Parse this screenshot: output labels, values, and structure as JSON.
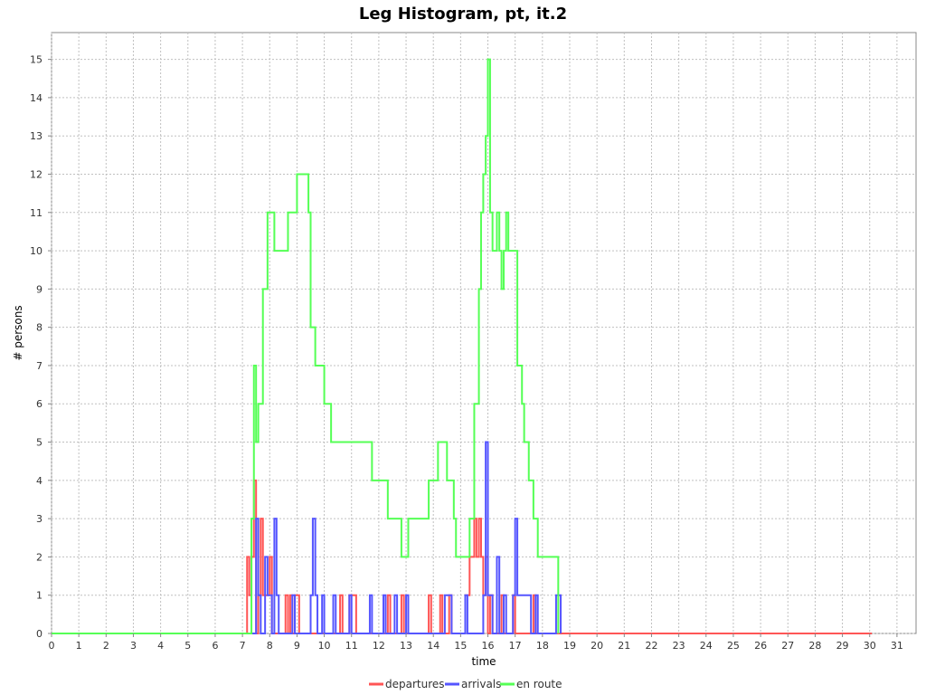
{
  "chart_data": {
    "type": "line",
    "title": "Leg Histogram, pt, it.2",
    "xlabel": "time",
    "ylabel": "# persons",
    "xlim": [
      0,
      31.7
    ],
    "ylim": [
      0,
      15.7
    ],
    "x_ticks": [
      0,
      1,
      2,
      3,
      4,
      5,
      6,
      7,
      8,
      9,
      10,
      11,
      12,
      13,
      14,
      15,
      16,
      17,
      18,
      19,
      20,
      21,
      22,
      23,
      24,
      25,
      26,
      27,
      28,
      29,
      30,
      31
    ],
    "y_ticks": [
      0,
      1,
      2,
      3,
      4,
      5,
      6,
      7,
      8,
      9,
      10,
      11,
      12,
      13,
      14,
      15
    ],
    "grid": true,
    "legend_position": "bottom",
    "series": [
      {
        "name": "departures",
        "color": "#ff5555",
        "steps": [
          [
            0,
            0
          ],
          [
            7.17,
            2
          ],
          [
            7.25,
            1
          ],
          [
            7.33,
            2
          ],
          [
            7.42,
            4
          ],
          [
            7.5,
            0
          ],
          [
            7.58,
            1
          ],
          [
            7.67,
            3
          ],
          [
            7.75,
            1
          ],
          [
            8.0,
            2
          ],
          [
            8.08,
            0
          ],
          [
            8.58,
            1
          ],
          [
            8.67,
            0
          ],
          [
            8.75,
            1
          ],
          [
            8.83,
            0
          ],
          [
            8.92,
            1
          ],
          [
            9.0,
            1
          ],
          [
            9.08,
            0
          ],
          [
            10.58,
            1
          ],
          [
            10.67,
            0
          ],
          [
            10.92,
            1
          ],
          [
            11.08,
            1
          ],
          [
            11.17,
            0
          ],
          [
            12.33,
            1
          ],
          [
            12.42,
            0
          ],
          [
            12.83,
            1
          ],
          [
            12.92,
            0
          ],
          [
            13.83,
            1
          ],
          [
            13.92,
            0
          ],
          [
            14.25,
            1
          ],
          [
            14.33,
            0
          ],
          [
            14.58,
            1
          ],
          [
            14.67,
            0
          ],
          [
            15.17,
            1
          ],
          [
            15.33,
            2
          ],
          [
            15.5,
            3
          ],
          [
            15.58,
            2
          ],
          [
            15.67,
            3
          ],
          [
            15.75,
            2
          ],
          [
            15.83,
            1
          ],
          [
            15.92,
            2
          ],
          [
            16.0,
            0
          ],
          [
            16.08,
            1
          ],
          [
            16.17,
            0
          ],
          [
            16.5,
            1
          ],
          [
            16.58,
            0
          ],
          [
            16.92,
            1
          ],
          [
            17.0,
            0
          ],
          [
            17.67,
            1
          ],
          [
            17.75,
            0
          ],
          [
            30.08,
            0
          ]
        ]
      },
      {
        "name": "arrivals",
        "color": "#5555ff",
        "steps": [
          [
            0,
            0
          ],
          [
            7.5,
            3
          ],
          [
            7.58,
            1
          ],
          [
            7.67,
            0
          ],
          [
            7.83,
            2
          ],
          [
            7.92,
            1
          ],
          [
            8.08,
            0
          ],
          [
            8.17,
            3
          ],
          [
            8.25,
            1
          ],
          [
            8.33,
            0
          ],
          [
            8.83,
            1
          ],
          [
            8.92,
            0
          ],
          [
            9.5,
            1
          ],
          [
            9.58,
            3
          ],
          [
            9.67,
            1
          ],
          [
            9.75,
            0
          ],
          [
            9.92,
            1
          ],
          [
            10.0,
            0
          ],
          [
            10.33,
            1
          ],
          [
            10.42,
            0
          ],
          [
            10.92,
            1
          ],
          [
            11.0,
            0
          ],
          [
            11.67,
            1
          ],
          [
            11.75,
            0
          ],
          [
            12.17,
            1
          ],
          [
            12.25,
            0
          ],
          [
            12.58,
            1
          ],
          [
            12.67,
            0
          ],
          [
            13.0,
            1
          ],
          [
            13.08,
            0
          ],
          [
            14.42,
            1
          ],
          [
            14.67,
            0
          ],
          [
            15.17,
            1
          ],
          [
            15.25,
            0
          ],
          [
            15.83,
            1
          ],
          [
            15.92,
            5
          ],
          [
            16.0,
            1
          ],
          [
            16.17,
            0
          ],
          [
            16.33,
            2
          ],
          [
            16.42,
            0
          ],
          [
            16.58,
            1
          ],
          [
            16.67,
            0
          ],
          [
            16.92,
            1
          ],
          [
            17.0,
            3
          ],
          [
            17.08,
            1
          ],
          [
            17.5,
            1
          ],
          [
            17.58,
            0
          ],
          [
            17.75,
            1
          ],
          [
            17.83,
            0
          ],
          [
            18.5,
            1
          ],
          [
            18.67,
            0
          ]
        ]
      },
      {
        "name": "en route",
        "color": "#55ff55",
        "steps": [
          [
            0,
            0
          ],
          [
            7.33,
            3
          ],
          [
            7.42,
            7
          ],
          [
            7.5,
            5
          ],
          [
            7.58,
            6
          ],
          [
            7.75,
            9
          ],
          [
            7.92,
            11
          ],
          [
            8.17,
            10
          ],
          [
            8.67,
            11
          ],
          [
            9.0,
            12
          ],
          [
            9.42,
            11
          ],
          [
            9.5,
            8
          ],
          [
            9.67,
            7
          ],
          [
            10.0,
            6
          ],
          [
            10.25,
            5
          ],
          [
            11.75,
            4
          ],
          [
            12.33,
            3
          ],
          [
            12.83,
            2
          ],
          [
            13.08,
            3
          ],
          [
            13.83,
            4
          ],
          [
            14.17,
            5
          ],
          [
            14.5,
            4
          ],
          [
            14.75,
            3
          ],
          [
            14.83,
            2
          ],
          [
            15.33,
            3
          ],
          [
            15.5,
            6
          ],
          [
            15.67,
            9
          ],
          [
            15.75,
            11
          ],
          [
            15.83,
            12
          ],
          [
            15.92,
            13
          ],
          [
            16.0,
            15
          ],
          [
            16.08,
            11
          ],
          [
            16.17,
            10
          ],
          [
            16.33,
            11
          ],
          [
            16.42,
            10
          ],
          [
            16.5,
            9
          ],
          [
            16.58,
            10
          ],
          [
            16.67,
            11
          ],
          [
            16.75,
            10
          ],
          [
            17.08,
            7
          ],
          [
            17.25,
            6
          ],
          [
            17.33,
            5
          ],
          [
            17.5,
            4
          ],
          [
            17.67,
            3
          ],
          [
            17.83,
            2
          ],
          [
            18.58,
            0
          ]
        ]
      }
    ]
  }
}
